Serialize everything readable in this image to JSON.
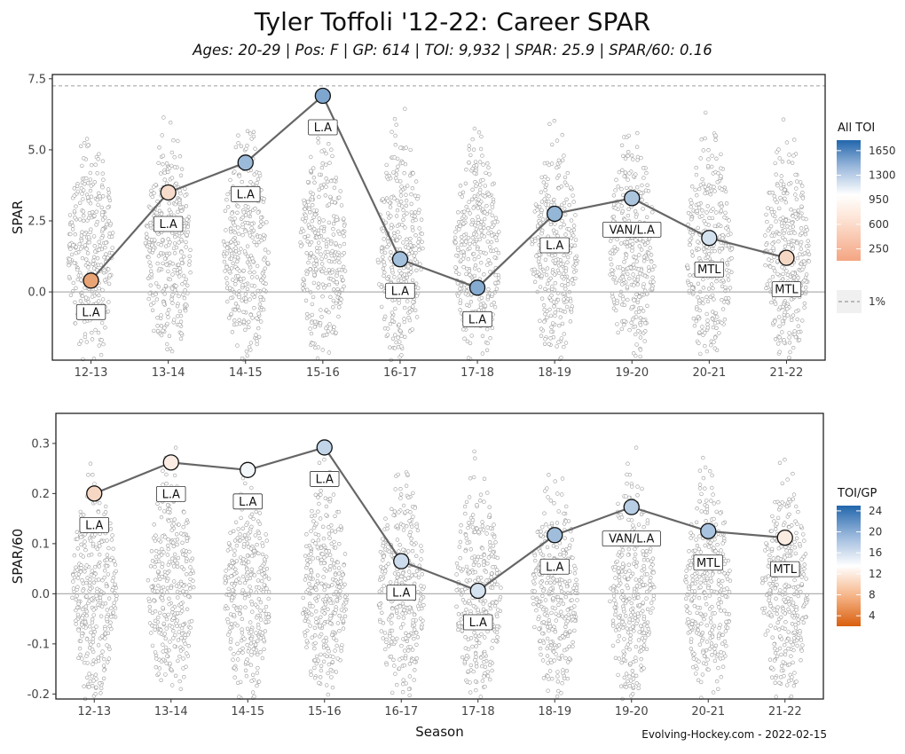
{
  "title": "Tyler Toffoli '12-22: Career SPAR",
  "subtitle": "Ages: 20-29 | Pos: F | GP: 614 | TOI: 9,932 | SPAR: 25.9 | SPAR/60: 0.16",
  "caption": "Evolving-Hockey.com - 2022-02-15",
  "chart_data": [
    {
      "type": "line",
      "categories": [
        "12-13",
        "13-14",
        "14-15",
        "15-16",
        "16-17",
        "17-18",
        "18-19",
        "19-20",
        "20-21",
        "21-22"
      ],
      "ylabel": "SPAR",
      "xlabel": "",
      "ylim": [
        -2.4,
        7.65
      ],
      "yticks": [
        0.0,
        2.5,
        5.0,
        7.5
      ],
      "ytick_labels": [
        "0.0",
        "2.5",
        "5.0",
        "7.5"
      ],
      "reference_line": {
        "value": 7.25,
        "label": "1%"
      },
      "series": [
        {
          "values": [
            0.4,
            3.5,
            4.55,
            6.9,
            1.15,
            0.15,
            2.75,
            3.3,
            1.9,
            1.2
          ],
          "teams": [
            "L.A",
            "L.A",
            "L.A",
            "L.A",
            "L.A",
            "L.A",
            "L.A",
            "VAN/L.A",
            "MTL",
            "MTL"
          ],
          "toi": [
            300,
            650,
            1250,
            1380,
            1220,
            1350,
            1280,
            1180,
            1000,
            620
          ]
        }
      ],
      "legend": {
        "title": "All TOI",
        "position": "right",
        "labels": [
          "1650",
          "1300",
          "950",
          "600",
          "250"
        ],
        "values": [
          1650,
          1300,
          950,
          600,
          250
        ],
        "range": [
          80,
          1800
        ]
      },
      "colors": {
        "low": "#e08040",
        "mid": "#ffffff",
        "high": "#2166ac"
      },
      "grid": false
    },
    {
      "type": "line",
      "categories": [
        "12-13",
        "13-14",
        "14-15",
        "15-16",
        "16-17",
        "17-18",
        "18-19",
        "19-20",
        "20-21",
        "21-22"
      ],
      "ylabel": "SPAR/60",
      "xlabel": "Season",
      "ylim": [
        -0.21,
        0.36
      ],
      "yticks": [
        -0.2,
        -0.1,
        0.0,
        0.1,
        0.2,
        0.3
      ],
      "ytick_labels": [
        "-0.2",
        "-0.1",
        "0.0",
        "0.1",
        "0.2",
        "0.3"
      ],
      "series": [
        {
          "values": [
            0.2,
            0.262,
            0.247,
            0.292,
            0.065,
            0.006,
            0.117,
            0.173,
            0.125,
            0.112
          ],
          "teams": [
            "L.A",
            "L.A",
            "L.A",
            "L.A",
            "L.A",
            "L.A",
            "L.A",
            "VAN/L.A",
            "MTL",
            "MTL"
          ],
          "toi_gp": [
            11.8,
            13.6,
            14.6,
            17.0,
            16.5,
            16.1,
            18.7,
            17.5,
            18.3,
            13.5
          ]
        }
      ],
      "legend": {
        "title": "TOI/GP",
        "position": "right",
        "labels": [
          "24",
          "20",
          "16",
          "12",
          "8",
          "4"
        ],
        "values": [
          24,
          20,
          16,
          12,
          8,
          4
        ],
        "range": [
          2,
          25
        ],
        "mid": 14
      },
      "colors": {
        "low": "#d95f0e",
        "mid": "#ffffff",
        "high": "#2166ac"
      },
      "grid": false
    }
  ]
}
